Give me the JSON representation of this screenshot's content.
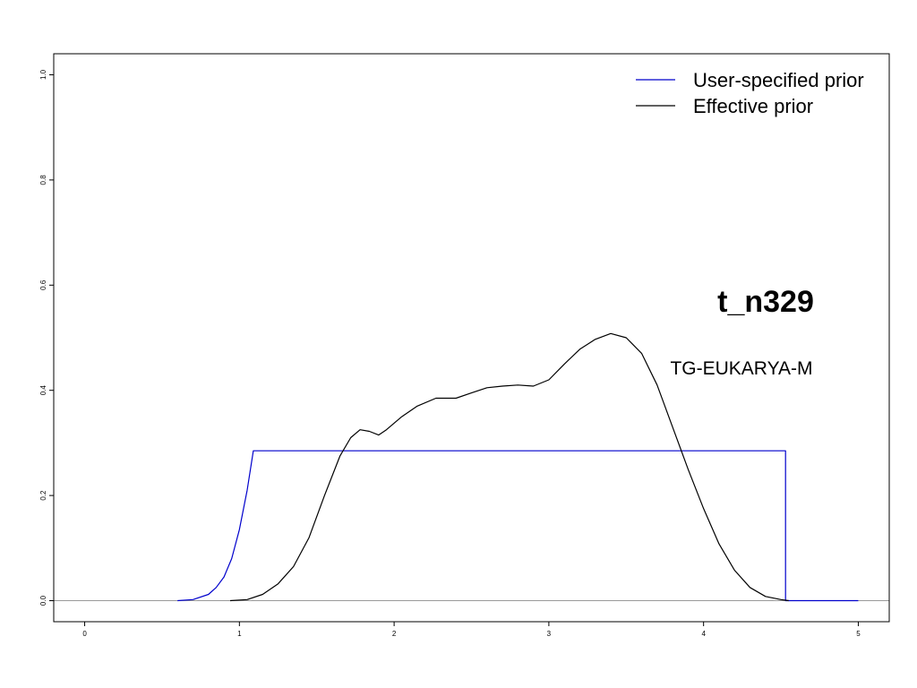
{
  "chart_data": {
    "type": "line",
    "title": "t_n329",
    "annotation": "TG-EUKARYA-M",
    "xlabel": "",
    "ylabel": "",
    "xlim": [
      -0.2,
      5.2
    ],
    "ylim": [
      -0.04,
      1.04
    ],
    "xticks": [
      0,
      1,
      2,
      3,
      4,
      5
    ],
    "xtick_labels": [
      "0",
      "1",
      "2",
      "3",
      "4",
      "5"
    ],
    "yticks": [
      0,
      0.2,
      0.4,
      0.6,
      0.8,
      1.0
    ],
    "ytick_labels": [
      "0.0",
      "0.2",
      "0.4",
      "0.6",
      "0.8",
      "1.0"
    ],
    "baseline": 0,
    "grid": false,
    "legend_position": "top-right",
    "series": [
      {
        "name": "User-specified prior",
        "color": "#0000cc",
        "x": [
          0.6,
          0.7,
          0.8,
          0.85,
          0.9,
          0.95,
          1.0,
          1.05,
          1.09,
          1.09,
          4.53,
          4.53,
          4.6,
          4.7,
          4.8,
          4.9,
          5.0
        ],
        "y": [
          0.0,
          0.002,
          0.012,
          0.025,
          0.045,
          0.08,
          0.135,
          0.21,
          0.285,
          0.285,
          0.285,
          0.0,
          0.0,
          0.0,
          0.0,
          0.0,
          0.0
        ]
      },
      {
        "name": "Effective prior",
        "color": "#000000",
        "x": [
          0.94,
          1.05,
          1.15,
          1.25,
          1.35,
          1.45,
          1.55,
          1.65,
          1.72,
          1.78,
          1.84,
          1.9,
          1.95,
          2.05,
          2.15,
          2.27,
          2.4,
          2.5,
          2.6,
          2.7,
          2.8,
          2.9,
          3.0,
          3.1,
          3.2,
          3.3,
          3.4,
          3.5,
          3.6,
          3.7,
          3.8,
          3.9,
          4.0,
          4.1,
          4.2,
          4.3,
          4.4,
          4.5,
          4.55
        ],
        "y": [
          0.0,
          0.002,
          0.012,
          0.032,
          0.065,
          0.12,
          0.2,
          0.275,
          0.31,
          0.325,
          0.322,
          0.315,
          0.325,
          0.35,
          0.37,
          0.385,
          0.385,
          0.395,
          0.405,
          0.408,
          0.41,
          0.408,
          0.42,
          0.45,
          0.478,
          0.497,
          0.508,
          0.5,
          0.47,
          0.41,
          0.33,
          0.25,
          0.175,
          0.108,
          0.058,
          0.025,
          0.008,
          0.002,
          0.0
        ]
      }
    ]
  }
}
